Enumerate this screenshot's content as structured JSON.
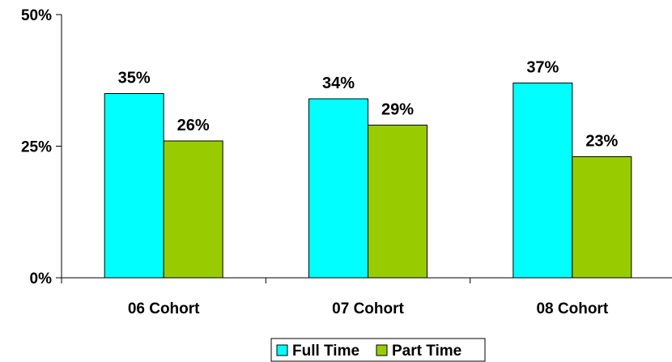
{
  "chart_data": {
    "type": "bar",
    "categories": [
      "06 Cohort",
      "07 Cohort",
      "08 Cohort"
    ],
    "series": [
      {
        "name": "Full Time",
        "values": [
          35,
          34,
          37
        ],
        "color": "#00FFFF",
        "labels": [
          "35%",
          "34%",
          "37%"
        ]
      },
      {
        "name": "Part Time",
        "values": [
          26,
          29,
          23
        ],
        "color": "#99CC00",
        "labels": [
          "26%",
          "29%",
          "23%"
        ]
      }
    ],
    "ylim": [
      0,
      50
    ],
    "yticks": [
      0,
      25,
      50
    ],
    "ytick_labels": [
      "0%",
      "25%",
      "50%"
    ],
    "grid": false,
    "legend_position": "bottom-center",
    "title": "",
    "xlabel": "",
    "ylabel": ""
  }
}
